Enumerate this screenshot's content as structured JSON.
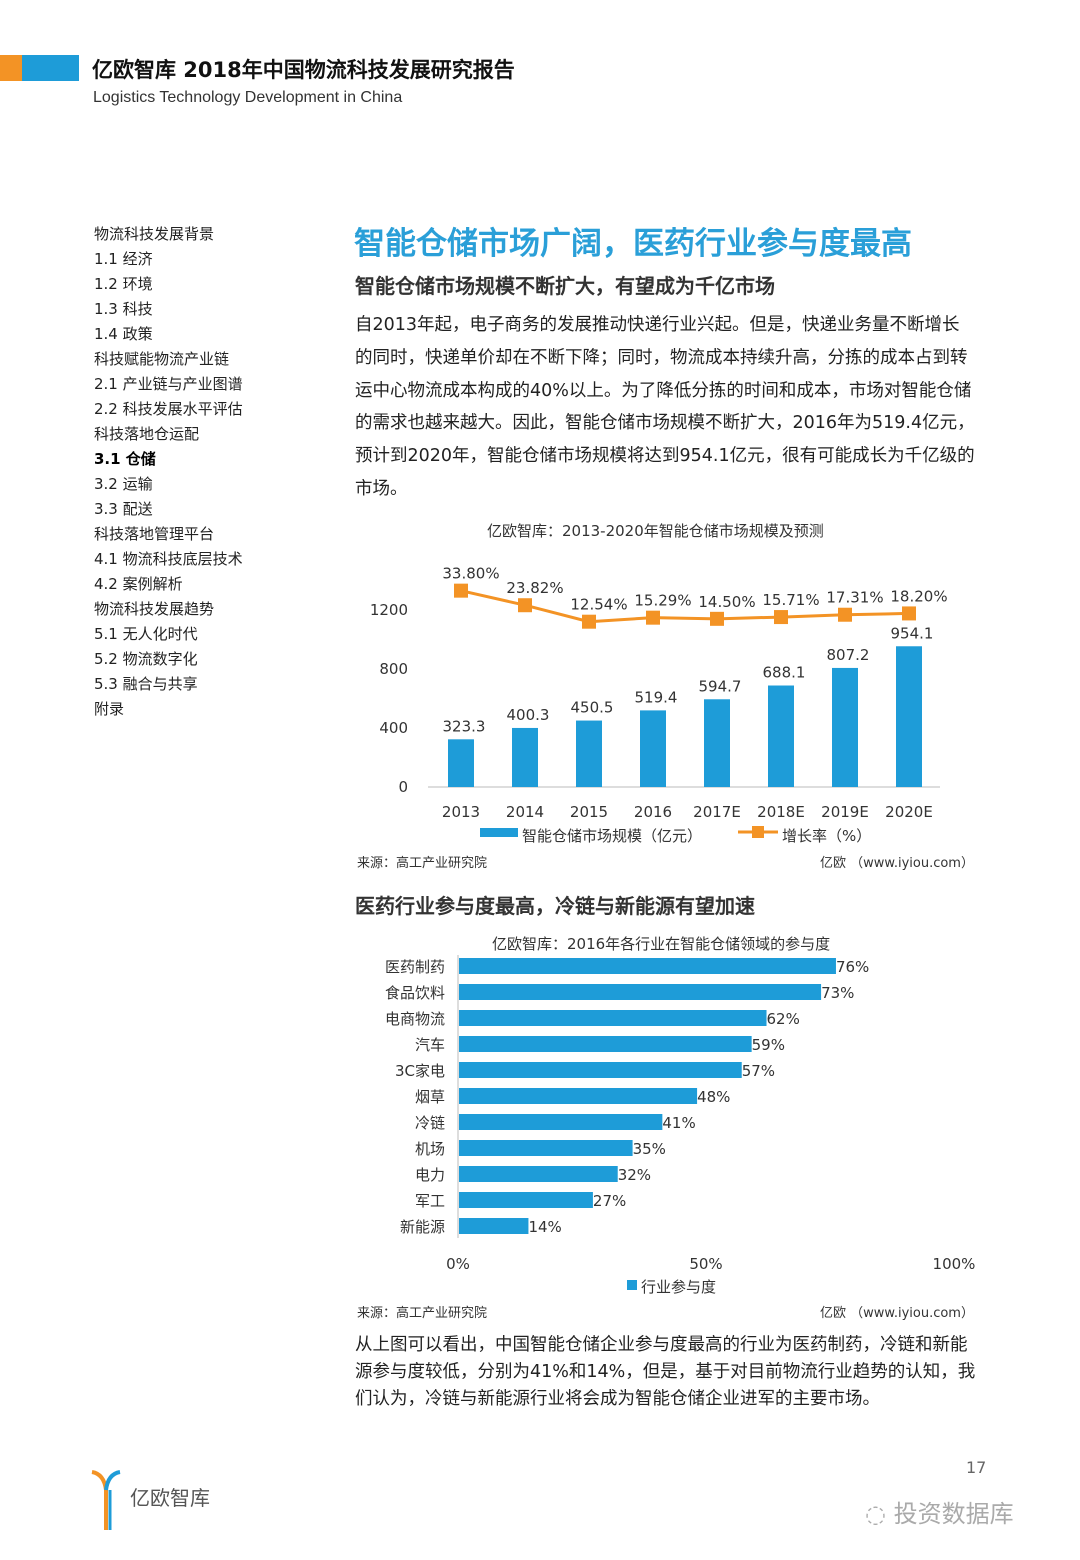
{
  "header": {
    "title": "亿欧智库 2018年中国物流科技发展研究报告",
    "subtitle": "Logistics Technology Development in China",
    "colors": {
      "orange": "#f39325",
      "blue": "#1e9cd8"
    }
  },
  "toc": [
    {
      "label": "物流科技发展背景",
      "active": false
    },
    {
      "label": "1.1 经济",
      "active": false
    },
    {
      "label": "1.2 环境",
      "active": false
    },
    {
      "label": "1.3 科技",
      "active": false
    },
    {
      "label": "1.4 政策",
      "active": false
    },
    {
      "label": "科技赋能物流产业链",
      "active": false
    },
    {
      "label": "2.1 产业链与产业图谱",
      "active": false
    },
    {
      "label": "2.2 科技发展水平评估",
      "active": false
    },
    {
      "label": "科技落地仓运配",
      "active": false
    },
    {
      "label": "3.1 仓储",
      "active": true
    },
    {
      "label": "3.2 运输",
      "active": false
    },
    {
      "label": "3.3 配送",
      "active": false
    },
    {
      "label": "科技落地管理平台",
      "active": false
    },
    {
      "label": "4.1 物流科技底层技术",
      "active": false
    },
    {
      "label": "4.2 案例解析",
      "active": false
    },
    {
      "label": "物流科技发展趋势",
      "active": false
    },
    {
      "label": "5.1 无人化时代",
      "active": false
    },
    {
      "label": "5.2 物流数字化",
      "active": false
    },
    {
      "label": "5.3 融合与共享",
      "active": false
    },
    {
      "label": "附录",
      "active": false
    }
  ],
  "main": {
    "title": "智能仓储市场广阔，医药行业参与度最高",
    "section1_title": "智能仓储市场规模不断扩大，有望成为千亿市场",
    "para1": "自2013年起，电子商务的发展推动快递行业兴起。但是，快递业务量不断增长的同时，快递单价却在不断下降；同时，物流成本持续升高，分拣的成本占到转运中心物流成本构成的40%以上。为了降低分拣的时间和成本，市场对智能仓储的需求也越来越大。因此，智能仓储市场规模不断扩大，2016年为519.4亿元，预计到2020年，智能仓储市场规模将达到954.1亿元，很有可能成长为千亿级的市场。",
    "section2_title": "医药行业参与度最高，冷链与新能源有望加速",
    "para2": "从上图可以看出，中国智能仓储企业参与度最高的行业为医药制药，冷链和新能源参与度较低，分别为41%和14%，但是，基于对目前物流行业趋势的认知，我们认为，冷链与新能源行业将会成为智能仓储企业进军的主要市场。",
    "source1": "来源：高工产业研究院",
    "credit1": "亿欧 （www.iyiou.com）",
    "source2": "来源：高工产业研究院",
    "credit2": "亿欧 （www.iyiou.com）"
  },
  "chart_data": [
    {
      "type": "bar+line",
      "title": "亿欧智库：2013-2020年智能仓储市场规模及预测",
      "categories": [
        "2013",
        "2014",
        "2015",
        "2016",
        "2017E",
        "2018E",
        "2019E",
        "2020E"
      ],
      "series": [
        {
          "name": "智能仓储市场规模（亿元）",
          "type": "bar",
          "color": "#1e9cd8",
          "values": [
            323.3,
            400.3,
            450.5,
            519.4,
            594.7,
            688.1,
            807.2,
            954.1
          ],
          "labels": [
            "323.3",
            "400.3",
            "450.5",
            "519.4",
            "594.7",
            "688.1",
            "807.2",
            "954.1"
          ]
        },
        {
          "name": "增长率（%）",
          "type": "line",
          "color": "#f39325",
          "values": [
            33.8,
            23.82,
            12.54,
            15.29,
            14.5,
            15.71,
            17.31,
            18.2
          ],
          "labels": [
            "33.80%",
            "23.82%",
            "12.54%",
            "15.29%",
            "14.50%",
            "15.71%",
            "17.31%",
            "18.20%"
          ]
        }
      ],
      "yticks": [
        "0",
        "400",
        "800",
        "1200"
      ],
      "ylim": [
        0,
        1200
      ],
      "grid": false,
      "legend": "bottom"
    },
    {
      "type": "bar",
      "orientation": "horizontal",
      "title": "亿欧智库：2016年各行业在智能仓储领域的参与度",
      "categories": [
        "医药制药",
        "食品饮料",
        "电商物流",
        "汽车",
        "3C家电",
        "烟草",
        "冷链",
        "机场",
        "电力",
        "军工",
        "新能源"
      ],
      "values": [
        76,
        73,
        62,
        59,
        57,
        48,
        41,
        35,
        32,
        27,
        14
      ],
      "labels": [
        "76%",
        "73%",
        "62%",
        "59%",
        "57%",
        "48%",
        "41%",
        "35%",
        "32%",
        "27%",
        "14%"
      ],
      "series_name": "行业参与度",
      "color": "#1e9cd8",
      "xticks": [
        "0%",
        "50%",
        "100%"
      ],
      "xlim": [
        0,
        100
      ],
      "grid": false,
      "legend": "bottom"
    }
  ],
  "footer": {
    "logo_text": "亿欧智库",
    "page_number": "17",
    "watermark": "投资数据库"
  }
}
